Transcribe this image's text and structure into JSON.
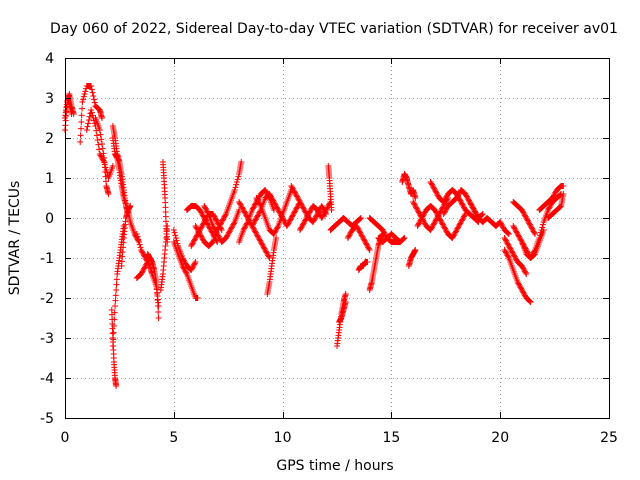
{
  "chart_data": {
    "type": "scatter",
    "title": "Day 060 of 2022, Sidereal Day-to-day VTEC variation (SDTVAR) for receiver av01",
    "xlabel": "GPS time / hours",
    "ylabel": "SDTVAR / TECUs",
    "xlim": [
      0,
      25
    ],
    "ylim": [
      -5,
      4
    ],
    "xticks": [
      0,
      5,
      10,
      15,
      20,
      25
    ],
    "yticks": [
      -5,
      -4,
      -3,
      -2,
      -1,
      0,
      1,
      2,
      3,
      4
    ],
    "xtick_labels": [
      "0",
      "5",
      "10",
      "15",
      "20",
      "25"
    ],
    "ytick_labels": [
      "-5",
      "-4",
      "-3",
      "-2",
      "-1",
      "0",
      "1",
      "2",
      "3",
      "4"
    ],
    "grid": true,
    "marker": "plus",
    "series": [
      {
        "name": "SDTVAR",
        "color": "#ff0000",
        "segments": [
          {
            "t": [
              0.0,
              0.1,
              0.2,
              0.3,
              0.4
            ],
            "v": [
              2.2,
              2.9,
              3.1,
              2.8,
              2.6
            ]
          },
          {
            "t": [
              0.0,
              0.1,
              0.2,
              0.3
            ],
            "v": [
              2.5,
              2.9,
              2.9,
              2.6
            ]
          },
          {
            "t": [
              0.7,
              0.8,
              1.0,
              1.2,
              1.4,
              1.6,
              1.7
            ],
            "v": [
              1.9,
              2.9,
              3.3,
              3.3,
              2.8,
              2.7,
              2.5
            ]
          },
          {
            "t": [
              1.0,
              1.2,
              1.4,
              1.6,
              1.8,
              2.0,
              2.2
            ],
            "v": [
              2.2,
              2.7,
              2.3,
              1.6,
              1.4,
              1.0,
              1.3
            ]
          },
          {
            "t": [
              1.4,
              1.6,
              1.8,
              1.9,
              2.0
            ],
            "v": [
              2.5,
              2.2,
              1.5,
              0.8,
              0.6
            ]
          },
          {
            "t": [
              2.2,
              2.3,
              2.4,
              2.5,
              2.6,
              2.7,
              2.8,
              2.9
            ],
            "v": [
              2.3,
              2.0,
              1.6,
              1.4,
              1.1,
              0.7,
              0.3,
              0.1
            ]
          },
          {
            "t": [
              2.2,
              2.3,
              2.4,
              2.5,
              2.6,
              2.7,
              2.9,
              3.0,
              3.2,
              3.4
            ],
            "v": [
              2.0,
              1.6,
              1.5,
              1.2,
              0.8,
              0.5,
              0.2,
              -0.1,
              -0.4,
              -0.6
            ]
          },
          {
            "t": [
              2.15,
              2.2,
              2.25,
              2.3,
              2.35
            ],
            "v": [
              -2.3,
              -3.0,
              -3.6,
              -4.0,
              -4.2
            ]
          },
          {
            "t": [
              2.2,
              2.3,
              2.4,
              2.5,
              2.6,
              2.7
            ],
            "v": [
              -3.2,
              -2.2,
              -1.4,
              -1.0,
              -0.6,
              -0.2
            ]
          },
          {
            "t": [
              2.6,
              2.7,
              2.8,
              2.9,
              3.0
            ],
            "v": [
              -1.2,
              -0.5,
              0.0,
              0.2,
              0.3
            ]
          },
          {
            "t": [
              3.3,
              3.5,
              3.7,
              3.9,
              4.0,
              4.2,
              4.3
            ],
            "v": [
              -0.4,
              -0.8,
              -1.0,
              -1.2,
              -1.4,
              -1.7,
              -2.2
            ]
          },
          {
            "t": [
              3.3,
              3.5,
              3.7,
              3.9
            ],
            "v": [
              -1.5,
              -1.4,
              -1.2,
              -1.0
            ]
          },
          {
            "t": [
              3.8,
              3.9,
              4.0,
              4.1,
              4.2,
              4.3
            ],
            "v": [
              -0.9,
              -1.0,
              -1.1,
              -1.3,
              -1.6,
              -2.5
            ]
          },
          {
            "t": [
              4.5,
              4.55,
              4.6,
              4.65,
              4.7
            ],
            "v": [
              1.4,
              1.0,
              0.5,
              -0.2,
              -0.6
            ]
          },
          {
            "t": [
              4.4,
              4.5,
              4.6,
              4.7
            ],
            "v": [
              -1.8,
              -1.4,
              -0.8,
              -0.2
            ]
          },
          {
            "t": [
              5.0,
              5.2,
              5.4,
              5.6,
              5.8,
              6.0,
              6.1
            ],
            "v": [
              -0.6,
              -0.9,
              -1.2,
              -1.4,
              -1.7,
              -2.0,
              -2.0
            ]
          },
          {
            "t": [
              5.0,
              5.2,
              5.4,
              5.6,
              5.8,
              6.0
            ],
            "v": [
              -0.3,
              -0.7,
              -1.0,
              -1.2,
              -1.3,
              -1.1
            ]
          },
          {
            "t": [
              5.6,
              5.8,
              6.0,
              6.2,
              6.4,
              6.6,
              6.8,
              7.0
            ],
            "v": [
              0.2,
              0.3,
              0.3,
              0.2,
              0.0,
              -0.2,
              -0.4,
              -0.6
            ]
          },
          {
            "t": [
              5.8,
              6.0,
              6.2,
              6.4,
              6.6,
              6.8,
              7.0,
              7.2
            ],
            "v": [
              -0.7,
              -0.5,
              -0.3,
              -0.1,
              0.1,
              0.1,
              -0.1,
              -0.3
            ]
          },
          {
            "t": [
              6.0,
              6.2,
              6.4,
              6.6,
              6.8,
              7.0,
              7.2,
              7.4,
              7.6,
              7.8,
              8.0,
              8.1
            ],
            "v": [
              -0.2,
              -0.4,
              -0.6,
              -0.7,
              -0.6,
              -0.3,
              -0.1,
              0.1,
              0.4,
              0.7,
              1.1,
              1.4
            ]
          },
          {
            "t": [
              6.4,
              6.6,
              6.8,
              7.0,
              7.2,
              7.4,
              7.6,
              7.8,
              8.0
            ],
            "v": [
              0.3,
              0.1,
              -0.2,
              -0.4,
              -0.6,
              -0.5,
              -0.3,
              -0.1,
              0.2
            ]
          },
          {
            "t": [
              8.0,
              8.2,
              8.4,
              8.6,
              8.8,
              9.0,
              9.2,
              9.4,
              9.6
            ],
            "v": [
              -0.6,
              -0.3,
              -0.1,
              0.2,
              0.4,
              0.6,
              0.7,
              0.5,
              0.2
            ]
          },
          {
            "t": [
              8.0,
              8.2,
              8.4,
              8.6,
              8.8,
              9.0,
              9.2,
              9.4
            ],
            "v": [
              0.4,
              0.2,
              0.0,
              -0.2,
              -0.4,
              -0.6,
              -0.8,
              -1.0
            ]
          },
          {
            "t": [
              8.6,
              8.8,
              9.0,
              9.2,
              9.4,
              9.6,
              9.8,
              10.0,
              10.2,
              10.4,
              10.6,
              10.8
            ],
            "v": [
              -0.2,
              0.0,
              0.2,
              0.5,
              0.6,
              0.4,
              0.2,
              0.0,
              -0.2,
              0.0,
              0.2,
              0.4
            ]
          },
          {
            "t": [
              8.8,
              9.0,
              9.2,
              9.4,
              9.6,
              9.8,
              10.0,
              10.2,
              10.4
            ],
            "v": [
              0.5,
              0.3,
              0.0,
              -0.3,
              -0.4,
              -0.2,
              0.1,
              0.4,
              0.7
            ]
          },
          {
            "t": [
              9.3,
              9.4,
              9.5,
              9.6,
              9.7
            ],
            "v": [
              -1.9,
              -1.6,
              -1.2,
              -0.8,
              -0.5
            ]
          },
          {
            "t": [
              10.4,
              10.6,
              10.8,
              11.0,
              11.2,
              11.4,
              11.6,
              11.8,
              12.0
            ],
            "v": [
              0.8,
              0.6,
              0.4,
              0.2,
              0.0,
              -0.1,
              0.1,
              0.3,
              0.1
            ]
          },
          {
            "t": [
              10.8,
              11.0,
              11.2,
              11.4,
              11.6,
              11.8,
              12.0,
              12.2
            ],
            "v": [
              -0.3,
              -0.1,
              0.1,
              0.3,
              0.2,
              0.0,
              0.2,
              0.4
            ]
          },
          {
            "t": [
              12.1,
              12.15,
              12.2,
              12.25
            ],
            "v": [
              1.3,
              1.0,
              0.6,
              0.2
            ]
          },
          {
            "t": [
              12.2,
              12.4,
              12.6,
              12.8,
              13.0,
              13.2,
              13.4,
              13.6
            ],
            "v": [
              -0.3,
              -0.2,
              -0.1,
              0.0,
              -0.1,
              -0.2,
              -0.1,
              0.0
            ]
          },
          {
            "t": [
              12.5,
              12.6,
              12.7,
              12.8,
              12.9
            ],
            "v": [
              -3.2,
              -2.8,
              -2.4,
              -2.1,
              -1.9
            ]
          },
          {
            "t": [
              12.6,
              12.7,
              12.8,
              12.9
            ],
            "v": [
              -2.6,
              -2.5,
              -2.3,
              -2.1
            ]
          },
          {
            "t": [
              13.0,
              13.2,
              13.4,
              13.6,
              13.8,
              14.0
            ],
            "v": [
              -0.5,
              -0.3,
              -0.2,
              -0.4,
              -0.6,
              -0.8
            ]
          },
          {
            "t": [
              13.5,
              13.6,
              13.7,
              13.8,
              13.9
            ],
            "v": [
              -1.3,
              -1.2,
              -1.2,
              -1.1,
              -1.1
            ]
          },
          {
            "t": [
              14.0,
              14.1,
              14.2,
              14.3,
              14.4,
              14.5,
              14.6
            ],
            "v": [
              -1.8,
              -1.6,
              -1.3,
              -1.0,
              -0.7,
              -0.5,
              -0.4
            ]
          },
          {
            "t": [
              14.0,
              14.2,
              14.4,
              14.6,
              14.8,
              15.0,
              15.2,
              15.4,
              15.6
            ],
            "v": [
              0.0,
              -0.1,
              -0.2,
              -0.3,
              -0.5,
              -0.6,
              -0.6,
              -0.6,
              -0.5
            ]
          },
          {
            "t": [
              14.4,
              14.6,
              14.8,
              15.0,
              15.2,
              15.4
            ],
            "v": [
              -0.5,
              -0.6,
              -0.5,
              -0.4,
              -0.5,
              -0.6
            ]
          },
          {
            "t": [
              15.5,
              15.6,
              15.7,
              15.8,
              15.9,
              16.0,
              16.1
            ],
            "v": [
              0.9,
              1.1,
              1.0,
              0.8,
              0.6,
              0.7,
              0.5
            ]
          },
          {
            "t": [
              15.8,
              15.9,
              16.0,
              16.1
            ],
            "v": [
              -1.2,
              -1.0,
              -0.9,
              -0.8
            ]
          },
          {
            "t": [
              16.0,
              16.2,
              16.4,
              16.6,
              16.8,
              17.0,
              17.2,
              17.4,
              17.6
            ],
            "v": [
              0.4,
              0.2,
              0.0,
              -0.2,
              -0.3,
              -0.1,
              0.1,
              0.3,
              0.5
            ]
          },
          {
            "t": [
              16.2,
              16.4,
              16.6,
              16.8,
              17.0,
              17.2,
              17.4,
              17.6,
              17.8,
              18.0,
              18.2,
              18.4
            ],
            "v": [
              -0.2,
              0.0,
              0.2,
              0.3,
              0.2,
              0.0,
              -0.2,
              -0.4,
              -0.5,
              -0.3,
              -0.1,
              0.1
            ]
          },
          {
            "t": [
              16.8,
              17.0,
              17.2,
              17.4,
              17.6,
              17.8,
              18.0,
              18.2,
              18.4,
              18.6,
              18.8,
              19.0
            ],
            "v": [
              0.9,
              0.7,
              0.5,
              0.4,
              0.6,
              0.7,
              0.6,
              0.4,
              0.2,
              0.1,
              0.0,
              -0.1
            ]
          },
          {
            "t": [
              17.4,
              17.6,
              17.8,
              18.0,
              18.2,
              18.4,
              18.6,
              18.8,
              19.0,
              19.2
            ],
            "v": [
              0.1,
              0.3,
              0.4,
              0.5,
              0.7,
              0.6,
              0.4,
              0.2,
              0.0,
              0.1
            ]
          },
          {
            "t": [
              18.6,
              18.8,
              19.0,
              19.2,
              19.4,
              19.6,
              19.8,
              20.0,
              20.2,
              20.4
            ],
            "v": [
              0.4,
              0.2,
              0.0,
              -0.1,
              0.0,
              -0.1,
              -0.2,
              -0.1,
              -0.3,
              -0.4
            ]
          },
          {
            "t": [
              20.2,
              20.4,
              20.6,
              20.8,
              21.0,
              21.2,
              21.4
            ],
            "v": [
              -0.8,
              -1.0,
              -1.3,
              -1.6,
              -1.8,
              -2.0,
              -2.1
            ]
          },
          {
            "t": [
              20.2,
              20.4,
              20.6,
              20.8,
              21.0,
              21.2
            ],
            "v": [
              -0.5,
              -0.7,
              -0.9,
              -1.1,
              -1.2,
              -1.4
            ]
          },
          {
            "t": [
              20.6,
              20.8,
              21.0,
              21.2,
              21.4,
              21.6,
              21.8,
              22.0
            ],
            "v": [
              -0.2,
              -0.4,
              -0.6,
              -0.8,
              -1.0,
              -0.9,
              -0.6,
              -0.3
            ]
          },
          {
            "t": [
              20.6,
              20.8,
              21.0,
              21.2,
              21.4,
              21.6
            ],
            "v": [
              0.4,
              0.3,
              0.2,
              0.0,
              -0.2,
              -0.4
            ]
          },
          {
            "t": [
              21.0,
              21.2,
              21.4,
              21.6,
              21.8,
              22.0,
              22.2,
              22.4,
              22.6,
              22.8
            ],
            "v": [
              -0.6,
              -0.9,
              -1.0,
              -0.8,
              -0.5,
              -0.1,
              0.2,
              0.4,
              0.5,
              0.6
            ]
          },
          {
            "t": [
              21.8,
              22.0,
              22.2,
              22.4,
              22.6,
              22.8,
              22.9
            ],
            "v": [
              0.2,
              0.3,
              0.4,
              0.5,
              0.7,
              0.8,
              0.8
            ]
          },
          {
            "t": [
              22.2,
              22.4,
              22.6,
              22.8,
              22.9
            ],
            "v": [
              0.0,
              0.1,
              0.2,
              0.3,
              0.6
            ]
          }
        ]
      }
    ]
  }
}
